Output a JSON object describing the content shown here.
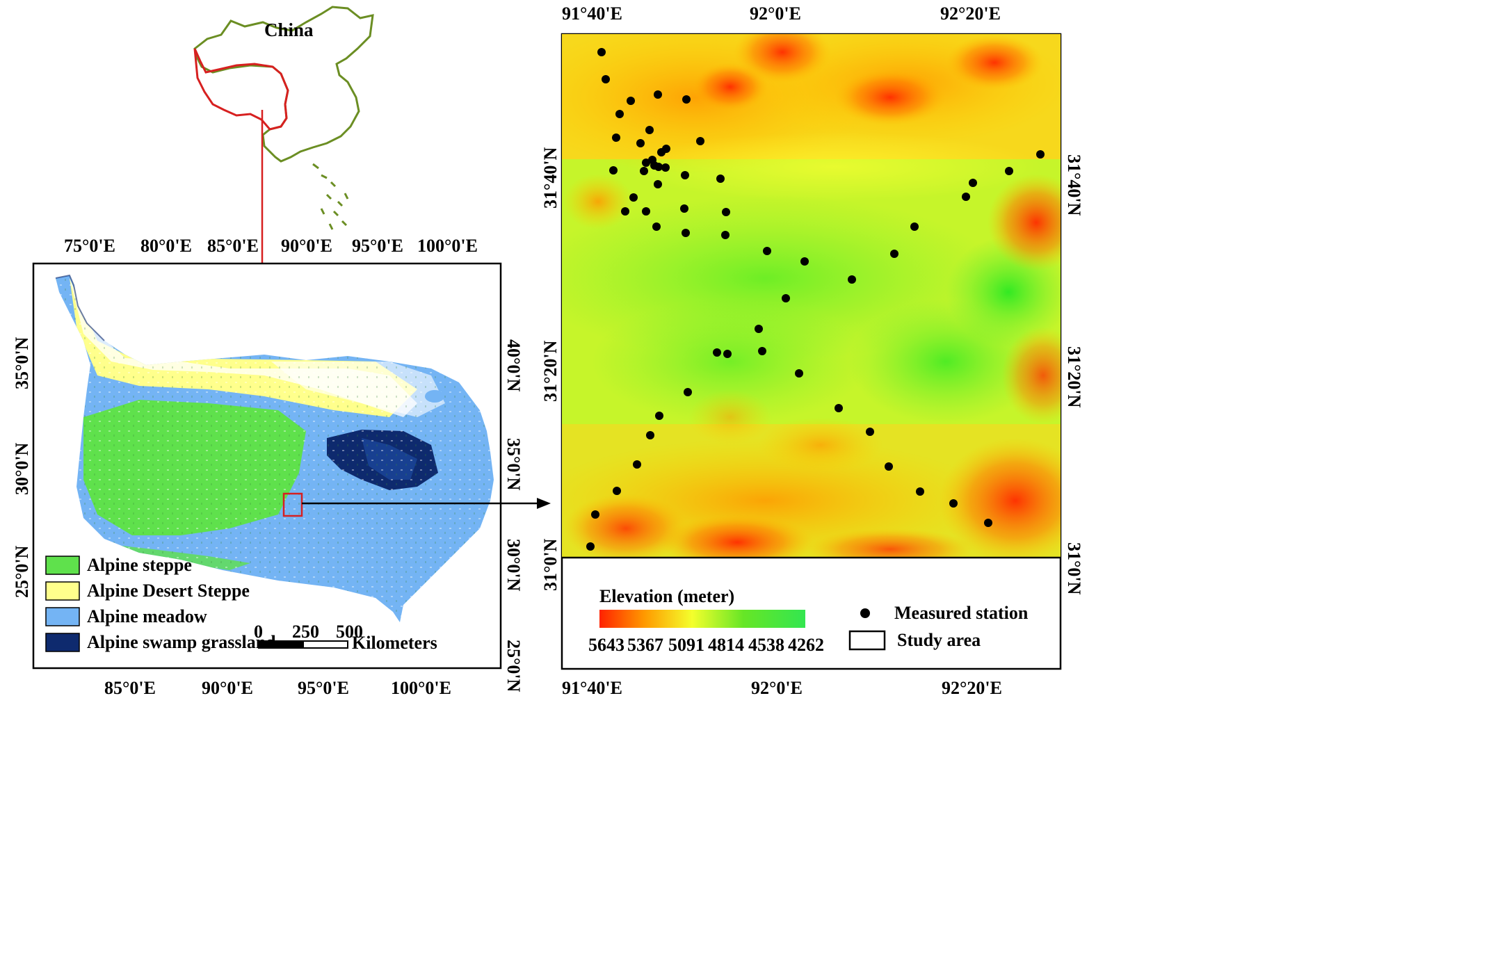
{
  "inset": {
    "country_label": "China"
  },
  "plateau_map": {
    "top_ticks": [
      "75°0'E",
      "80°0'E",
      "85°0'E",
      "90°0'E",
      "95°0'E",
      "100°0'E"
    ],
    "bottom_ticks": [
      "85°0'E",
      "90°0'E",
      "95°0'E",
      "100°0'E"
    ],
    "left_ticks": [
      "35°0'N",
      "30°0'N",
      "25°0'N"
    ],
    "right_ticks": [
      "40°0'N",
      "35°0'N",
      "30°0'N",
      "25°0'N"
    ],
    "legend": [
      {
        "label": "Alpine steppe",
        "color": "#5fe14c"
      },
      {
        "label": "Alpine Desert Steppe",
        "color": "#ffff8c"
      },
      {
        "label": "Alpine meadow",
        "color": "#74b4f4"
      },
      {
        "label": "Alpine swamp grassland",
        "color": "#0e2a6e"
      }
    ],
    "scale_bar": {
      "ticks": [
        "0",
        "250",
        "500"
      ],
      "unit": "Kilometers"
    }
  },
  "study_map": {
    "top_ticks": [
      "91°40'E",
      "92°0'E",
      "92°20'E"
    ],
    "bottom_ticks": [
      "91°40'E",
      "92°0'E",
      "92°20'E"
    ],
    "left_ticks": [
      "31°40'N",
      "31°20'N",
      "31°0'N"
    ],
    "right_ticks": [
      "31°40'N",
      "31°20'N",
      "31°0'N"
    ],
    "elevation_legend": {
      "title": "Elevation (meter)",
      "values": [
        "5643",
        "5367",
        "5091",
        "4814",
        "4538",
        "4262"
      ],
      "gradient": [
        "#ff2200",
        "#ffaa00",
        "#ffff33",
        "#88ee22",
        "#22dd22",
        "#44ee44"
      ]
    },
    "station_legend": "Measured station",
    "study_area_legend": "Study area",
    "stations": [
      [
        865,
        75
      ],
      [
        871,
        114
      ],
      [
        907,
        145
      ],
      [
        946,
        136
      ],
      [
        987,
        143
      ],
      [
        891,
        164
      ],
      [
        934,
        187
      ],
      [
        886,
        198
      ],
      [
        921,
        206
      ],
      [
        1007,
        203
      ],
      [
        958,
        214
      ],
      [
        951,
        219
      ],
      [
        938,
        230
      ],
      [
        929,
        234
      ],
      [
        941,
        238
      ],
      [
        947,
        240
      ],
      [
        957,
        241
      ],
      [
        926,
        246
      ],
      [
        882,
        245
      ],
      [
        985,
        252
      ],
      [
        946,
        265
      ],
      [
        1036,
        257
      ],
      [
        911,
        284
      ],
      [
        899,
        304
      ],
      [
        929,
        304
      ],
      [
        984,
        300
      ],
      [
        1044,
        305
      ],
      [
        944,
        326
      ],
      [
        986,
        335
      ],
      [
        1043,
        338
      ],
      [
        1103,
        361
      ],
      [
        1157,
        376
      ],
      [
        1225,
        402
      ],
      [
        1286,
        365
      ],
      [
        1315,
        326
      ],
      [
        1389,
        283
      ],
      [
        1399,
        263
      ],
      [
        1451,
        246
      ],
      [
        1496,
        222
      ],
      [
        1130,
        429
      ],
      [
        1091,
        473
      ],
      [
        1096,
        505
      ],
      [
        1031,
        507
      ],
      [
        1046,
        509
      ],
      [
        1149,
        537
      ],
      [
        989,
        564
      ],
      [
        1206,
        587
      ],
      [
        948,
        598
      ],
      [
        935,
        626
      ],
      [
        1251,
        621
      ],
      [
        916,
        668
      ],
      [
        1278,
        671
      ],
      [
        887,
        706
      ],
      [
        1323,
        707
      ],
      [
        856,
        740
      ],
      [
        1371,
        724
      ],
      [
        1421,
        752
      ],
      [
        849,
        786
      ]
    ]
  }
}
